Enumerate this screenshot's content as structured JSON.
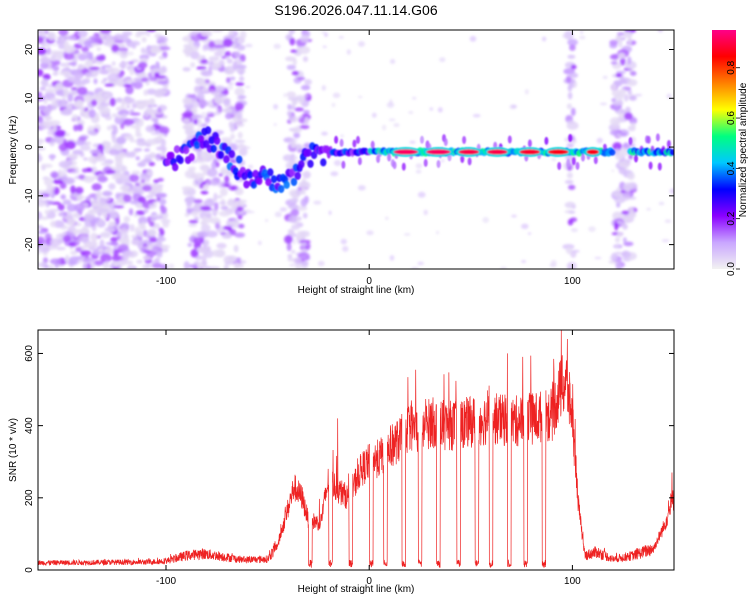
{
  "chart_data": [
    {
      "type": "heatmap",
      "title": "S196.2026.047.11.14.G06",
      "xlabel": "Height of straight line (km)",
      "ylabel": "Frequency (Hz)",
      "xlim": [
        -163,
        150
      ],
      "ylim": [
        -25,
        24
      ],
      "xticks": [
        {
          "v": -100,
          "label": "-100"
        },
        {
          "v": 0,
          "label": "0"
        },
        {
          "v": 100,
          "label": "100"
        }
      ],
      "yticks": [
        {
          "v": 20,
          "label": "20"
        },
        {
          "v": 10,
          "label": "10"
        },
        {
          "v": 0,
          "label": "0"
        },
        {
          "v": -10,
          "label": "-10"
        },
        {
          "v": -20,
          "label": "-20"
        }
      ],
      "colorbar": {
        "label": "Normalized spectral amplitude",
        "range": [
          0,
          0.95
        ],
        "ticks": [
          {
            "v": 0.0,
            "label": "0.0"
          },
          {
            "v": 0.2,
            "label": "0.2"
          },
          {
            "v": 0.4,
            "label": "0.4"
          },
          {
            "v": 0.6,
            "label": "0.6"
          },
          {
            "v": 0.8,
            "label": "0.8"
          }
        ],
        "colors": [
          "#f2f2f2",
          "#c9a6ff",
          "#8a00ff",
          "#0000ff",
          "#00c8ff",
          "#00ff80",
          "#ffff00",
          "#ff8000",
          "#ff0000",
          "#ff0088"
        ]
      },
      "features": {
        "noise_regions": [
          [
            -163,
            -100
          ],
          [
            -90,
            -62
          ],
          [
            -40,
            -30
          ],
          [
            98,
            101
          ],
          [
            120,
            130
          ]
        ],
        "ridge": [
          {
            "x": -100,
            "f": -4
          },
          {
            "x": -90,
            "f": -1
          },
          {
            "x": -80,
            "f": 2
          },
          {
            "x": -60,
            "f": -6
          },
          {
            "x": -40,
            "f": -7
          },
          {
            "x": -30,
            "f": -2
          },
          {
            "x": -20,
            "f": -1
          },
          {
            "x": 0,
            "f": -1
          },
          {
            "x": 150,
            "f": -1
          }
        ],
        "hot_segments": [
          {
            "x0": 12,
            "x1": 24,
            "f": -1,
            "a": 0.92
          },
          {
            "x0": 28,
            "x1": 40,
            "f": -1,
            "a": 0.92
          },
          {
            "x0": 44,
            "x1": 54,
            "f": -1,
            "a": 0.9
          },
          {
            "x0": 58,
            "x1": 68,
            "f": -1,
            "a": 0.9
          },
          {
            "x0": 74,
            "x1": 84,
            "f": -1,
            "a": 0.88
          },
          {
            "x0": 88,
            "x1": 98,
            "f": -1,
            "a": 0.86
          },
          {
            "x0": 107,
            "x1": 113,
            "f": -1,
            "a": 0.86
          }
        ]
      }
    },
    {
      "type": "line",
      "xlabel": "Height of straight line (km)",
      "ylabel": "SNR (10 * v/v)",
      "xlim": [
        -163,
        150
      ],
      "ylim": [
        0,
        665
      ],
      "color": "#ee2222",
      "xticks": [
        {
          "v": -100,
          "label": "-100"
        },
        {
          "v": 0,
          "label": "0"
        },
        {
          "v": 100,
          "label": "100"
        }
      ],
      "yticks": [
        {
          "v": 0,
          "label": "0"
        },
        {
          "v": 200,
          "label": "200"
        },
        {
          "v": 400,
          "label": "400"
        },
        {
          "v": 600,
          "label": "600"
        }
      ],
      "envelope": [
        [
          -163,
          20
        ],
        [
          -110,
          22
        ],
        [
          -100,
          25
        ],
        [
          -90,
          40
        ],
        [
          -82,
          45
        ],
        [
          -75,
          40
        ],
        [
          -62,
          28
        ],
        [
          -50,
          30
        ],
        [
          -45,
          70
        ],
        [
          -42,
          130
        ],
        [
          -37,
          230
        ],
        [
          -33,
          200
        ],
        [
          -30,
          140
        ],
        [
          -24,
          130
        ],
        [
          -20,
          250
        ],
        [
          -15,
          220
        ],
        [
          -10,
          200
        ],
        [
          -5,
          270
        ],
        [
          0,
          300
        ],
        [
          5,
          310
        ],
        [
          10,
          340
        ],
        [
          15,
          360
        ],
        [
          20,
          400
        ],
        [
          25,
          380
        ],
        [
          30,
          410
        ],
        [
          40,
          400
        ],
        [
          50,
          410
        ],
        [
          60,
          420
        ],
        [
          70,
          410
        ],
        [
          80,
          420
        ],
        [
          90,
          430
        ],
        [
          94,
          500
        ],
        [
          97,
          520
        ],
        [
          100,
          420
        ],
        [
          103,
          180
        ],
        [
          106,
          40
        ],
        [
          112,
          50
        ],
        [
          120,
          30
        ],
        [
          130,
          40
        ],
        [
          140,
          60
        ],
        [
          145,
          120
        ],
        [
          150,
          200
        ]
      ],
      "dips": [
        -29,
        -19,
        -9,
        1,
        8,
        17,
        25,
        34,
        44,
        53,
        60,
        69,
        77,
        86
      ],
      "spikes": [
        {
          "x": -15.5,
          "y": 420
        },
        {
          "x": 94.5,
          "y": 665
        },
        {
          "x": 97.5,
          "y": 640
        },
        {
          "x": 100.2,
          "y": 515
        },
        {
          "x": 149,
          "y": 270
        }
      ]
    }
  ]
}
